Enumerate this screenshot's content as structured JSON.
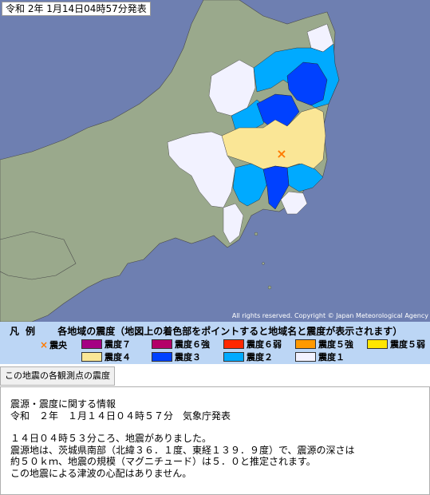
{
  "map": {
    "timestamp": "令和  2年  1月14日04時57分発表",
    "copyright": "All rights reserved. Copyright © Japan Meteorological Agency",
    "colors": {
      "sea": "#6e7fb1",
      "land": "#9aa98c",
      "shindo1": "#f2f2ff",
      "shindo2": "#00aaff",
      "shindo3": "#0041ff",
      "shindo4": "#fae696",
      "epicenter": "#ff7a00"
    },
    "epicenter_marker": "×"
  },
  "legend": {
    "title_hanrei": "凡例",
    "title_main": "各地域の震度（地図上の着色部をポイントすると地域名と震度が表示されます）",
    "epicenter_label": "震央",
    "items": [
      {
        "label": "震度７",
        "color": "#a50083"
      },
      {
        "label": "震度６強",
        "color": "#b40068"
      },
      {
        "label": "震度６弱",
        "color": "#ff2800"
      },
      {
        "label": "震度５強",
        "color": "#ff9900"
      },
      {
        "label": "震度５弱",
        "color": "#ffe600"
      },
      {
        "label": "震度４",
        "color": "#fae696"
      },
      {
        "label": "震度３",
        "color": "#0041ff"
      },
      {
        "label": "震度２",
        "color": "#00aaff"
      },
      {
        "label": "震度１",
        "color": "#f2f2ff"
      }
    ]
  },
  "observation_button": "この地震の各観測点の震度",
  "info": {
    "lines": [
      "震源・震度に関する情報",
      "令和　２年　１月１４日０４時５７分　気象庁発表",
      "",
      "１４日０４時５３分ころ、地震がありました。",
      "震源地は、茨城県南部（北緯３６．１度、東経１３９．９度）で、震源の深さは",
      "約５０ｋｍ、地震の規模（マグニチュード）は５．０と推定されます。",
      "この地震による津波の心配はありません。"
    ]
  }
}
